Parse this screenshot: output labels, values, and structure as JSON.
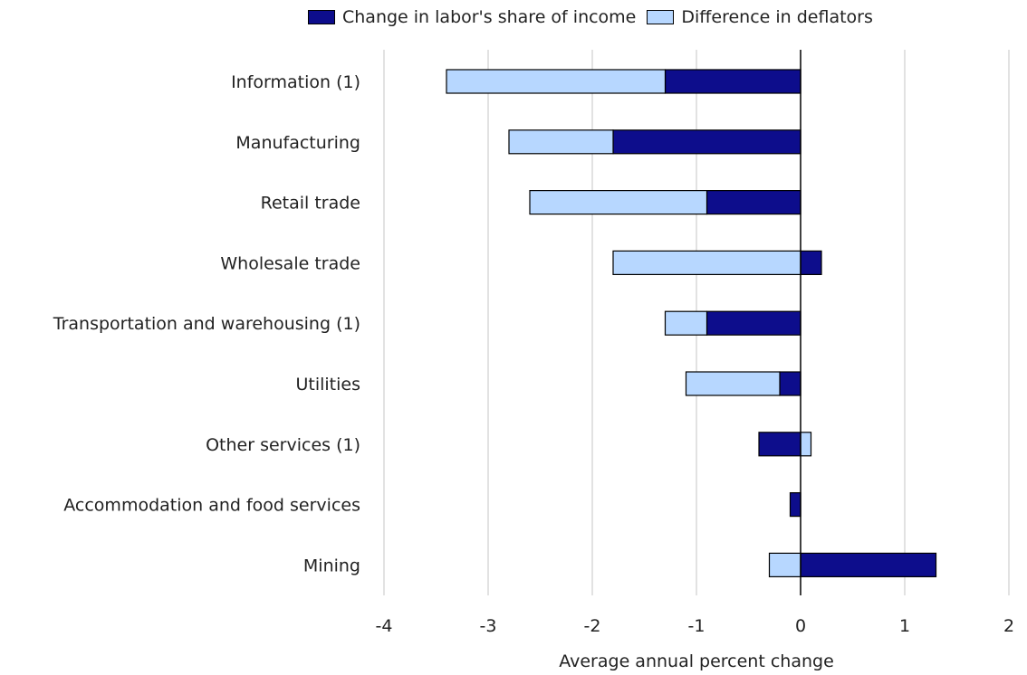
{
  "chart_data": {
    "type": "bar",
    "orientation": "horizontal",
    "stacked": true,
    "categories": [
      "Information (1)",
      "Manufacturing",
      "Retail trade",
      "Wholesale trade",
      "Transportation and warehousing (1)",
      "Utilities",
      "Other services (1)",
      "Accommodation and food services",
      "Mining"
    ],
    "series": [
      {
        "name": "Change in labor's share of income",
        "color": "#0d0d8c",
        "values": [
          -1.3,
          -1.8,
          -0.9,
          0.2,
          -0.9,
          -0.2,
          -0.4,
          -0.1,
          1.3
        ]
      },
      {
        "name": "Difference in deflators",
        "color": "#b7d7ff",
        "values": [
          -2.1,
          -1.0,
          -1.7,
          -1.8,
          -0.4,
          -0.9,
          0.1,
          0.0,
          -0.3
        ]
      }
    ],
    "xlabel": "Average annual percent change",
    "xlim": [
      -4,
      2
    ],
    "xticks": [
      -4,
      -3,
      -2,
      -1,
      0,
      1,
      2
    ],
    "grid": "vertical",
    "legend_position": "top"
  }
}
